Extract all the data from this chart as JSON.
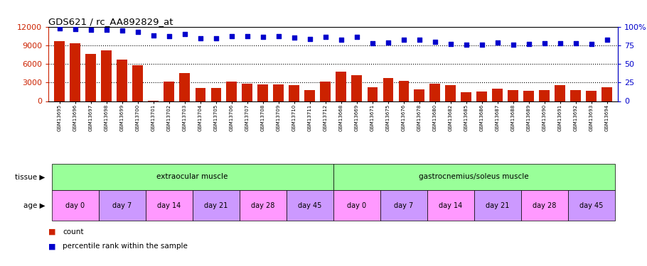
{
  "title": "GDS621 / rc_AA892829_at",
  "samples": [
    "GSM13695",
    "GSM13696",
    "GSM13697",
    "GSM13698",
    "GSM13699",
    "GSM13700",
    "GSM13701",
    "GSM13702",
    "GSM13703",
    "GSM13704",
    "GSM13705",
    "GSM13706",
    "GSM13707",
    "GSM13708",
    "GSM13709",
    "GSM13710",
    "GSM13711",
    "GSM13712",
    "GSM13668",
    "GSM13669",
    "GSM13671",
    "GSM13675",
    "GSM13676",
    "GSM13678",
    "GSM13680",
    "GSM13682",
    "GSM13685",
    "GSM13686",
    "GSM13687",
    "GSM13688",
    "GSM13689",
    "GSM13690",
    "GSM13691",
    "GSM13692",
    "GSM13693",
    "GSM13694"
  ],
  "counts": [
    9700,
    9300,
    7600,
    8200,
    6700,
    5800,
    100,
    3100,
    4500,
    2100,
    2100,
    3100,
    2800,
    2700,
    2700,
    2600,
    1800,
    3100,
    4700,
    4200,
    2200,
    3700,
    3300,
    1900,
    2800,
    2600,
    1400,
    1500,
    2000,
    1800,
    1700,
    1800,
    2600,
    1800,
    1700,
    2200
  ],
  "percentiles": [
    98,
    97,
    96,
    96,
    95,
    93,
    88,
    87,
    90,
    84,
    84,
    87,
    87,
    86,
    87,
    85,
    83,
    86,
    82,
    86,
    78,
    79,
    82,
    82,
    80,
    77,
    76,
    76,
    79,
    76,
    77,
    78,
    78,
    78,
    77,
    82
  ],
  "bar_color": "#cc2200",
  "dot_color": "#0000cc",
  "left_ylim": [
    0,
    12000
  ],
  "left_yticks": [
    0,
    3000,
    6000,
    9000,
    12000
  ],
  "right_ylim": [
    0,
    100
  ],
  "right_yticks": [
    0,
    25,
    50,
    75,
    100
  ],
  "right_yticklabels": [
    "0",
    "25",
    "50",
    "75",
    "100%"
  ],
  "tissue_color": "#99ff99",
  "tissue_groups": [
    {
      "label": "extraocular muscle",
      "start": 0,
      "end": 18
    },
    {
      "label": "gastrocnemius/soleus muscle",
      "start": 18,
      "end": 36
    }
  ],
  "age_colors": [
    "#ff99ff",
    "#cc99ff",
    "#ff99ff",
    "#cc99ff",
    "#ff99ff",
    "#cc99ff"
  ],
  "age_labels": [
    "day 0",
    "day 7",
    "day 14",
    "day 21",
    "day 28",
    "day 45"
  ],
  "tissue_row_label": "tissue",
  "age_row_label": "age",
  "legend_count_label": "count",
  "legend_pct_label": "percentile rank within the sample"
}
